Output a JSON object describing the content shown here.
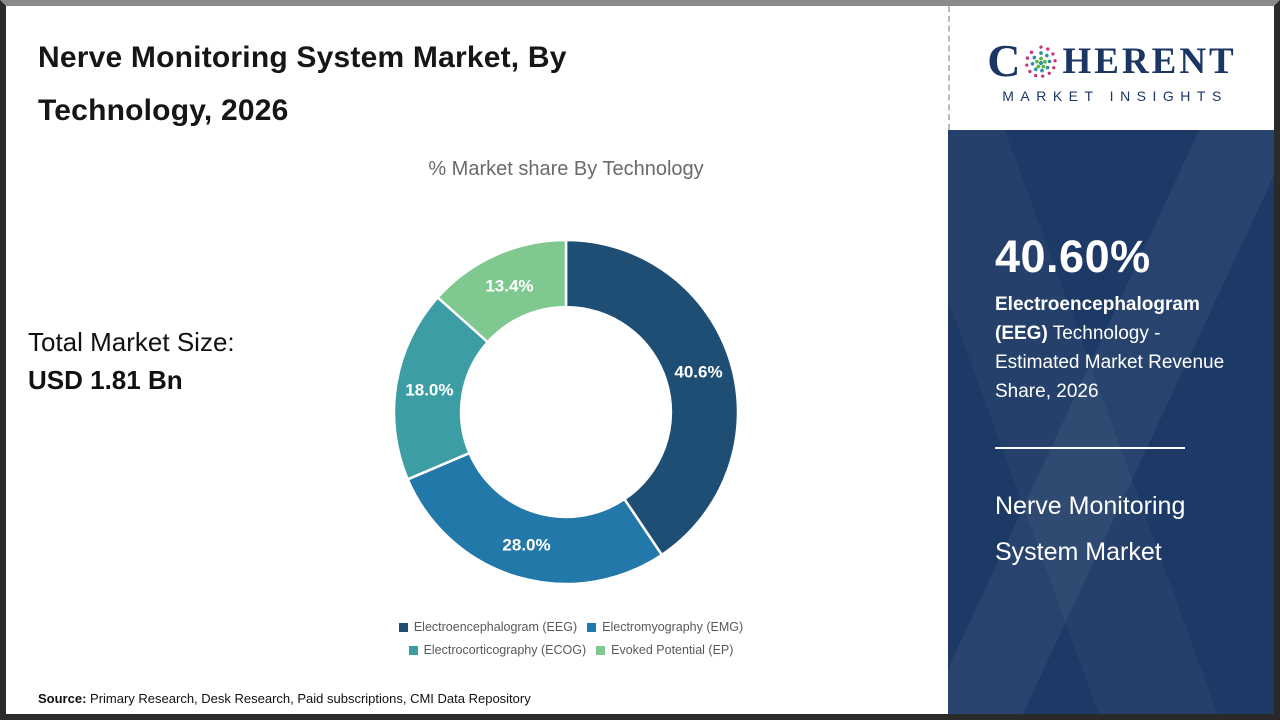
{
  "header": {
    "title": "Nerve Monitoring System Market, By Technology, 2026"
  },
  "total_market": {
    "label": "Total Market Size:",
    "value": "USD 1.81 Bn"
  },
  "chart_data": {
    "type": "pie",
    "subtype": "donut",
    "title": "% Market share By Technology",
    "labels": [
      "Electroencephalogram (EEG)",
      "Electromyography (EMG)",
      "Electrocorticography (ECOG)",
      "Evoked Potential (EP)"
    ],
    "values": [
      40.6,
      28.0,
      18.0,
      13.4
    ],
    "data_labels": [
      "40.6%",
      "28.0%",
      "18.0%",
      "13.4%"
    ],
    "colors": [
      "#1F4E74",
      "#2278A8",
      "#3C9EA4",
      "#7FC890"
    ],
    "start_angle_deg": 0,
    "direction": "clockwise",
    "inner_radius_ratio": 0.61,
    "legend_position": "bottom"
  },
  "source": {
    "label": "Source:",
    "text": " Primary Research, Desk Research, Paid subscriptions, CMI Data Repository"
  },
  "sidebar": {
    "logo_text_start": "C",
    "logo_text_end": "HERENT",
    "logo_subtitle": "MARKET INSIGHTS",
    "stat_value": "40.60%",
    "stat_desc_bold": "Electroencephalogram (EEG)",
    "stat_desc_rest": " Technology - Estimated Market Revenue Share, 2026",
    "market_name": "Nerve Monitoring System Market"
  },
  "colors": {
    "panel_navy": "#1D3A66",
    "logo_navy": "#1C3664",
    "legend_text": "#595959",
    "chart_title_gray": "#6a6a6a"
  }
}
